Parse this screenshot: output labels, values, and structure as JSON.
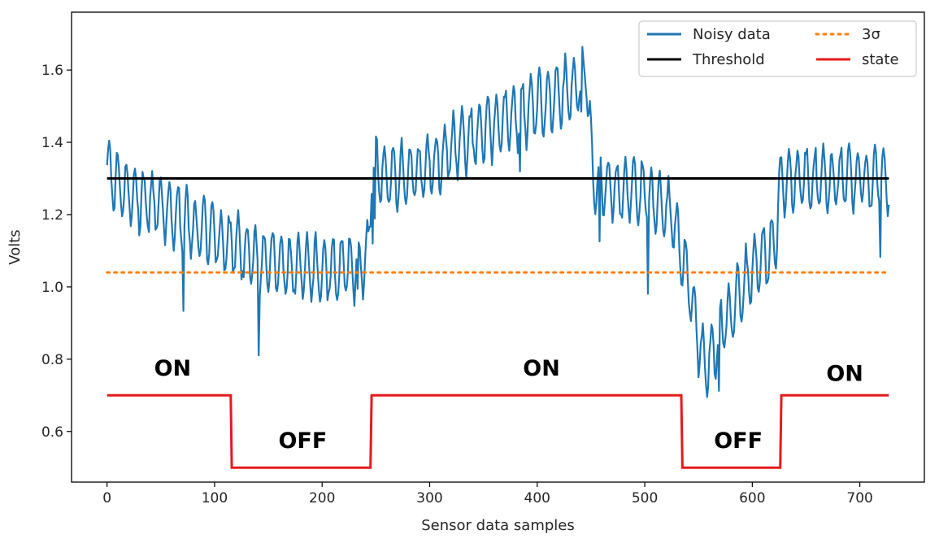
{
  "chart_data": {
    "type": "line",
    "title": "",
    "xlabel": "Sensor data samples",
    "ylabel": "Volts",
    "xlim": [
      -33,
      760
    ],
    "ylim": [
      0.46,
      1.76
    ],
    "xticks": [
      0,
      100,
      200,
      300,
      400,
      500,
      600,
      700
    ],
    "yticks": [
      0.6,
      0.8,
      1.0,
      1.2,
      1.4,
      1.6
    ],
    "grid": false,
    "legend_position": "top-right",
    "colors": {
      "noisy": "#1f77b4",
      "threshold": "#000000",
      "sigma": "#ff7f0e",
      "state": "#e41a1c"
    },
    "noisy_baseline": {
      "x": [
        0,
        20,
        60,
        100,
        130,
        160,
        200,
        230,
        243,
        246,
        270,
        300,
        330,
        360,
        400,
        440,
        446,
        452,
        500,
        525,
        540,
        555,
        575,
        600,
        622,
        626,
        660,
        700,
        727
      ],
      "y": [
        1.32,
        1.26,
        1.2,
        1.14,
        1.1,
        1.06,
        1.04,
        1.06,
        1.08,
        1.33,
        1.3,
        1.33,
        1.4,
        1.45,
        1.5,
        1.56,
        1.6,
        1.28,
        1.26,
        1.2,
        1.02,
        0.78,
        0.9,
        1.05,
        1.12,
        1.3,
        1.3,
        1.3,
        1.3
      ]
    },
    "noisy_amplitude": 0.085,
    "noisy_period": 8,
    "series": [
      {
        "name": "Noisy data",
        "style": "solid",
        "note": "oscillating sensor signal (approximate)"
      },
      {
        "name": "Threshold",
        "x": [
          0,
          727
        ],
        "y": [
          1.3,
          1.3
        ],
        "style": "solid"
      },
      {
        "name": "3σ",
        "x": [
          0,
          727
        ],
        "y": [
          1.04,
          1.04
        ],
        "style": "dotted"
      },
      {
        "name": "state",
        "x": [
          0,
          115,
          116,
          245,
          246,
          534,
          535,
          626,
          627,
          727
        ],
        "y": [
          0.7,
          0.7,
          0.5,
          0.5,
          0.7,
          0.7,
          0.5,
          0.5,
          0.7,
          0.7
        ],
        "style": "solid"
      }
    ],
    "annotations": [
      {
        "text": "ON",
        "x": 61,
        "y": 0.755
      },
      {
        "text": "OFF",
        "x": 182,
        "y": 0.555
      },
      {
        "text": "ON",
        "x": 404,
        "y": 0.755
      },
      {
        "text": "OFF",
        "x": 587,
        "y": 0.555
      },
      {
        "text": "ON",
        "x": 686,
        "y": 0.74
      }
    ],
    "legend": [
      "Noisy data",
      "Threshold",
      "3σ",
      "state"
    ]
  }
}
